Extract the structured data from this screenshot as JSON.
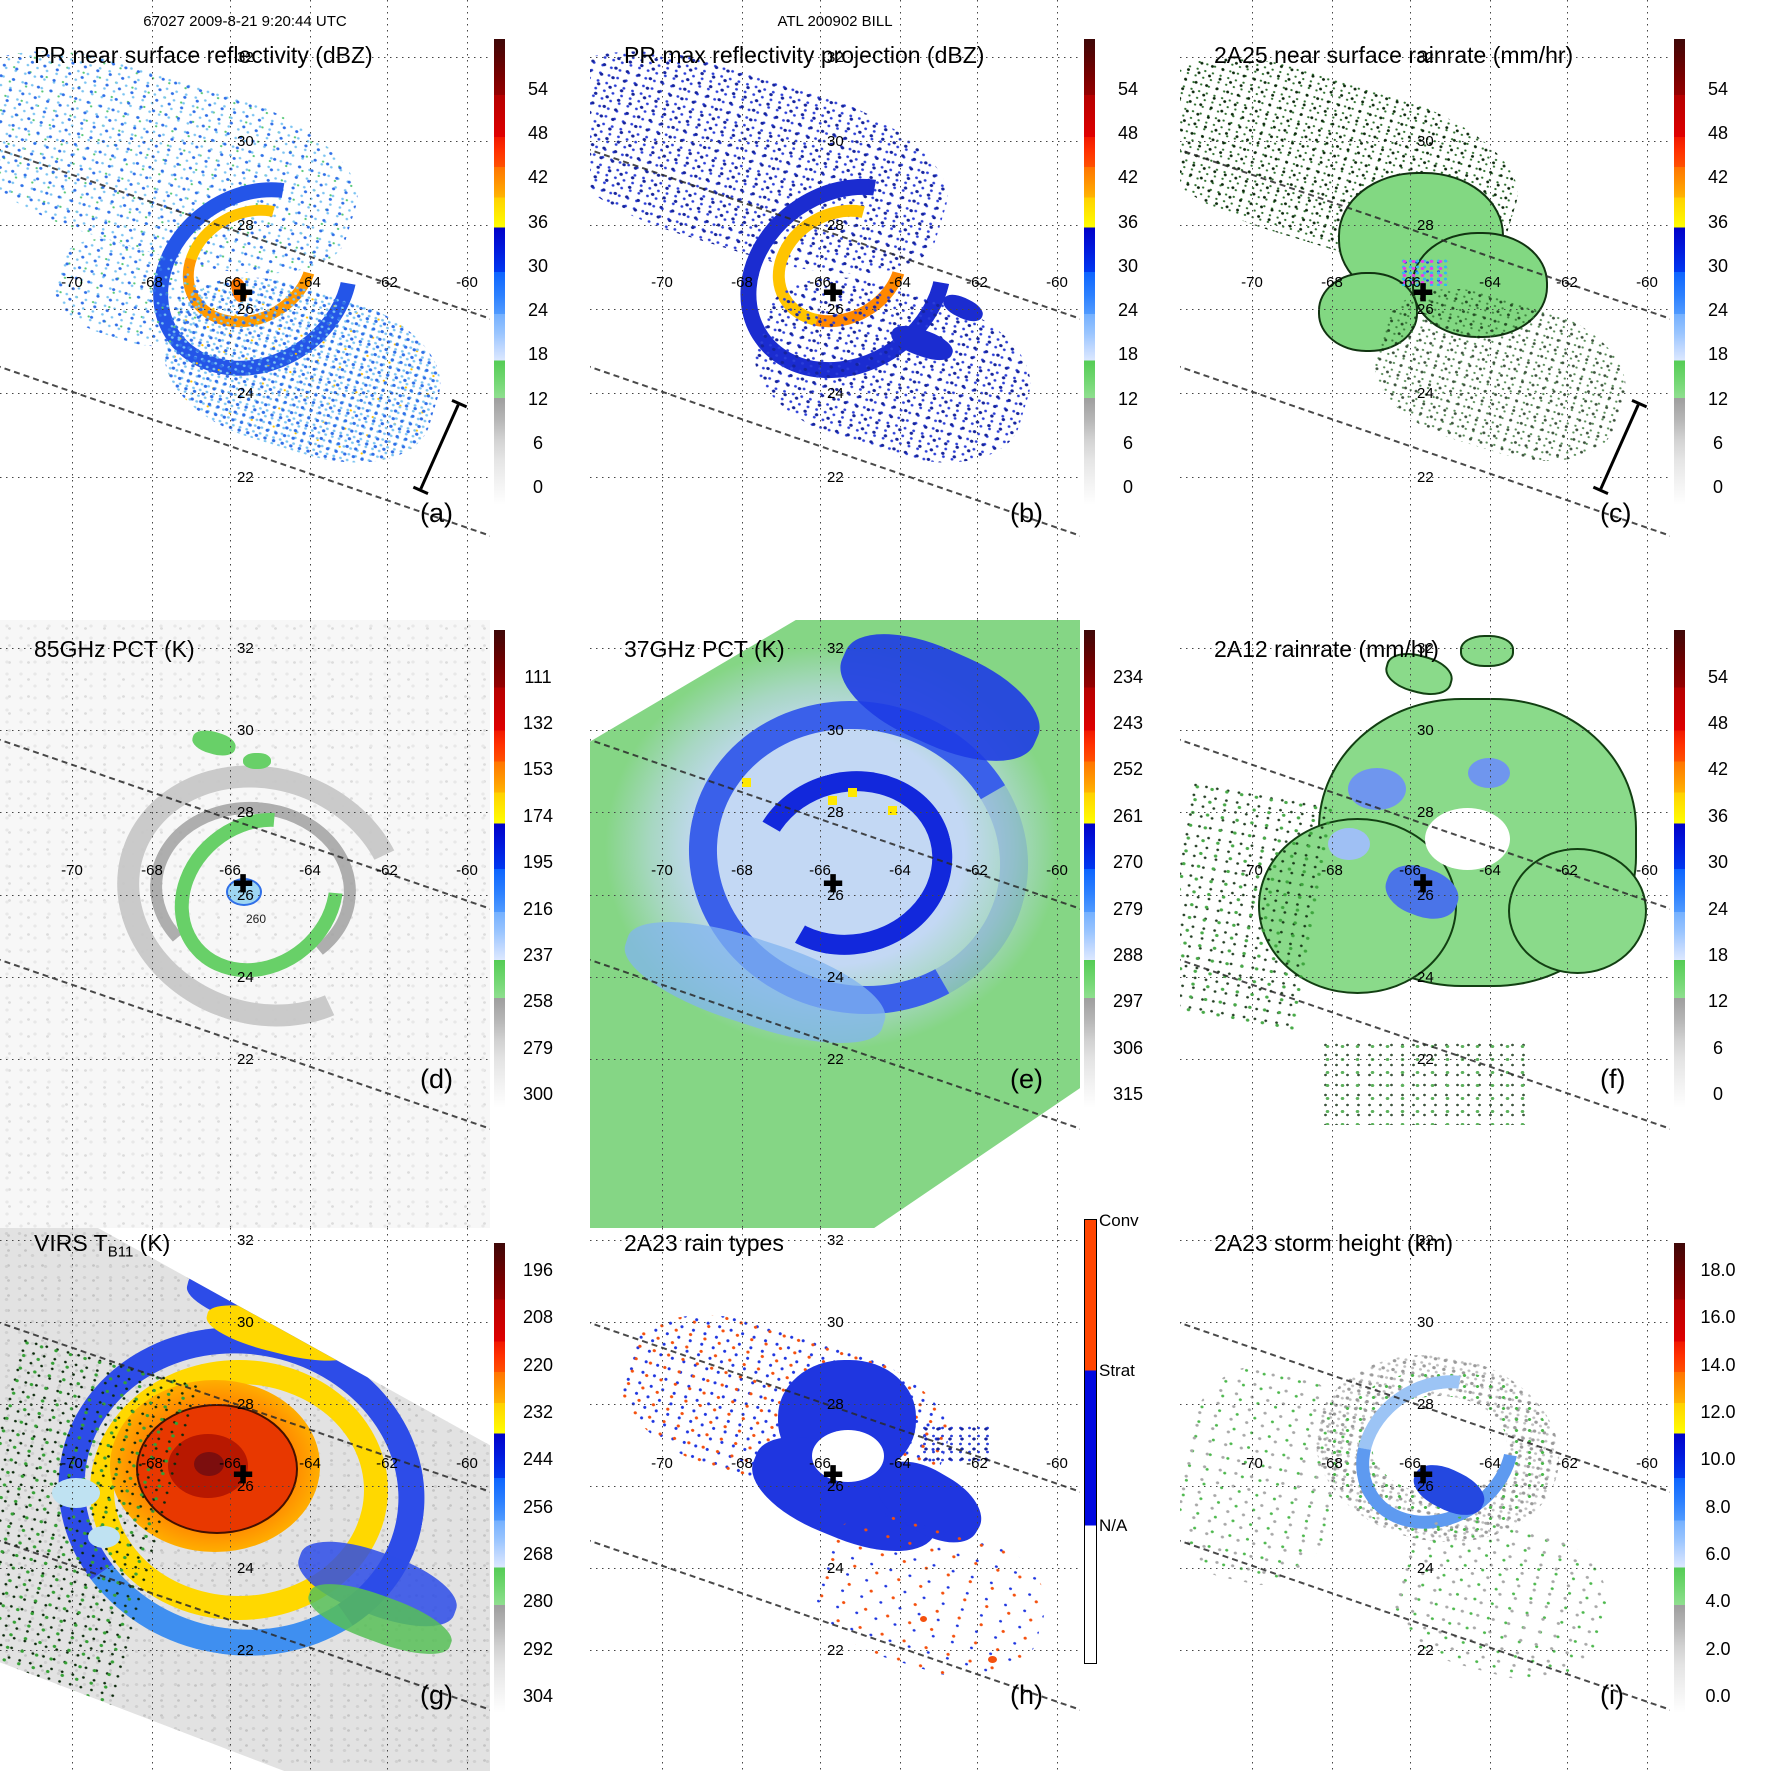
{
  "header": {
    "scan_info": "67027 2009-8-21 9:20:44 UTC",
    "storm_id": "ATL 200902 BILL"
  },
  "grid": {
    "lat_labels": [
      "32",
      "30",
      "28",
      "26",
      "24",
      "22"
    ],
    "lon_labels": [
      "-70",
      "-68",
      "-66",
      "-64",
      "-62",
      "-60"
    ]
  },
  "marker": {
    "glyph": "✚"
  },
  "panels": [
    {
      "id": "a",
      "letter": "(a)",
      "title": "PR near surface reflectivity (dBZ)",
      "ticks": [
        "0",
        "6",
        "12",
        "18",
        "24",
        "30",
        "36",
        "42",
        "48",
        "54"
      ]
    },
    {
      "id": "b",
      "letter": "(b)",
      "title": "PR max reflectivity projection (dBZ)",
      "ticks": [
        "0",
        "6",
        "12",
        "18",
        "24",
        "30",
        "36",
        "42",
        "48",
        "54"
      ]
    },
    {
      "id": "c",
      "letter": "(c)",
      "title": "2A25 near surface rainrate (mm/hr)",
      "ticks": [
        "0",
        "6",
        "12",
        "18",
        "24",
        "30",
        "36",
        "42",
        "48",
        "54"
      ]
    },
    {
      "id": "d",
      "letter": "(d)",
      "title": "85GHz PCT (K)",
      "contour_label": "260",
      "ticks": [
        "300",
        "279",
        "258",
        "237",
        "216",
        "195",
        "174",
        "153",
        "132",
        "111"
      ]
    },
    {
      "id": "e",
      "letter": "(e)",
      "title": "37GHz PCT (K)",
      "ticks": [
        "315",
        "306",
        "297",
        "288",
        "279",
        "270",
        "261",
        "252",
        "243",
        "234"
      ]
    },
    {
      "id": "f",
      "letter": "(f)",
      "title": "2A12 rainrate (mm/hr)",
      "ticks": [
        "0",
        "6",
        "12",
        "18",
        "24",
        "30",
        "36",
        "42",
        "48",
        "54"
      ]
    },
    {
      "id": "g",
      "letter": "(g)",
      "title_prefix": "VIRS T",
      "title_sub": "B11",
      "title_suffix": " (K)",
      "ticks": [
        "304",
        "292",
        "280",
        "268",
        "256",
        "244",
        "232",
        "220",
        "208",
        "196"
      ]
    },
    {
      "id": "h",
      "letter": "(h)",
      "title": "2A23 rain types",
      "type_labels": [
        "Conv",
        "Strat",
        "N/A"
      ]
    },
    {
      "id": "i",
      "letter": "(i)",
      "title": "2A23 storm height (km)",
      "ticks": [
        "0.0",
        "2.0",
        "4.0",
        "6.0",
        "8.0",
        "10.0",
        "12.0",
        "14.0",
        "16.0",
        "18.0"
      ]
    }
  ],
  "colors": {
    "raintype_conv": "#ff4500",
    "raintype_strat": "#0008e0",
    "raintype_na": "#ffffff",
    "gridline": "#444444",
    "palette_bottom_to_top": [
      "#ffffff",
      "#e4e4e4",
      "#b8b8b8",
      "#9e9e9e",
      "#8fdf8f",
      "#54cc54",
      "#dce8ff",
      "#98c4ff",
      "#509aff",
      "#0c64ff",
      "#0038f0",
      "#0000c8",
      "#ffff00",
      "#ffd000",
      "#ffb400",
      "#ff7400",
      "#ff3000",
      "#e00000",
      "#b40000",
      "#940000",
      "#5a0404",
      "#3e0808"
    ]
  },
  "chart_data": [
    {
      "panel": "a",
      "type": "heatmap",
      "title": "PR near surface reflectivity (dBZ)",
      "unit": "dBZ",
      "colorbar_ticks": [
        0,
        6,
        12,
        18,
        24,
        30,
        36,
        42,
        48,
        54
      ],
      "lon_gridlines": [
        -70,
        -68,
        -66,
        -64,
        -62,
        -60
      ],
      "lat_gridlines": [
        32,
        30,
        28,
        26,
        24,
        22
      ],
      "storm_center": {
        "lon": -65.3,
        "lat": 26.3
      }
    },
    {
      "panel": "b",
      "type": "heatmap",
      "title": "PR max reflectivity projection (dBZ)",
      "unit": "dBZ",
      "colorbar_ticks": [
        0,
        6,
        12,
        18,
        24,
        30,
        36,
        42,
        48,
        54
      ],
      "lon_gridlines": [
        -70,
        -68,
        -66,
        -64,
        -62,
        -60
      ],
      "lat_gridlines": [
        32,
        30,
        28,
        26,
        24,
        22
      ],
      "storm_center": {
        "lon": -65.3,
        "lat": 26.3
      }
    },
    {
      "panel": "c",
      "type": "heatmap",
      "title": "2A25 near surface rainrate (mm/hr)",
      "unit": "mm/hr",
      "colorbar_ticks": [
        0,
        6,
        12,
        18,
        24,
        30,
        36,
        42,
        48,
        54
      ],
      "lon_gridlines": [
        -70,
        -68,
        -66,
        -64,
        -62,
        -60
      ],
      "lat_gridlines": [
        32,
        30,
        28,
        26,
        24,
        22
      ],
      "storm_center": {
        "lon": -65.3,
        "lat": 26.3
      }
    },
    {
      "panel": "d",
      "type": "heatmap",
      "title": "85GHz PCT (K)",
      "unit": "K",
      "colorbar_ticks": [
        300,
        279,
        258,
        237,
        216,
        195,
        174,
        153,
        132,
        111
      ],
      "contour_label": 260,
      "lon_gridlines": [
        -70,
        -68,
        -66,
        -64,
        -62,
        -60
      ],
      "lat_gridlines": [
        32,
        30,
        28,
        26,
        24,
        22
      ],
      "storm_center": {
        "lon": -65.3,
        "lat": 26.3
      }
    },
    {
      "panel": "e",
      "type": "heatmap",
      "title": "37GHz PCT (K)",
      "unit": "K",
      "colorbar_ticks": [
        315,
        306,
        297,
        288,
        279,
        270,
        261,
        252,
        243,
        234
      ],
      "lon_gridlines": [
        -70,
        -68,
        -66,
        -64,
        -62,
        -60
      ],
      "lat_gridlines": [
        32,
        30,
        28,
        26,
        24,
        22
      ],
      "storm_center": {
        "lon": -65.3,
        "lat": 26.3
      }
    },
    {
      "panel": "f",
      "type": "heatmap",
      "title": "2A12 rainrate (mm/hr)",
      "unit": "mm/hr",
      "colorbar_ticks": [
        0,
        6,
        12,
        18,
        24,
        30,
        36,
        42,
        48,
        54
      ],
      "lon_gridlines": [
        -70,
        -68,
        -66,
        -64,
        -62,
        -60
      ],
      "lat_gridlines": [
        32,
        30,
        28,
        26,
        24,
        22
      ],
      "storm_center": {
        "lon": -65.3,
        "lat": 26.3
      }
    },
    {
      "panel": "g",
      "type": "heatmap",
      "title": "VIRS TB11 (K)",
      "unit": "K",
      "colorbar_ticks": [
        304,
        292,
        280,
        268,
        256,
        244,
        232,
        220,
        208,
        196
      ],
      "lon_gridlines": [
        -70,
        -68,
        -66,
        -64,
        -62,
        -60
      ],
      "lat_gridlines": [
        32,
        30,
        28,
        26,
        24,
        22
      ],
      "storm_center": {
        "lon": -65.3,
        "lat": 26.3
      }
    },
    {
      "panel": "h",
      "type": "heatmap",
      "title": "2A23 rain types",
      "categories": [
        "Conv",
        "Strat",
        "N/A"
      ],
      "category_colors": [
        "#ff4500",
        "#0008e0",
        "#ffffff"
      ],
      "lon_gridlines": [
        -70,
        -68,
        -66,
        -64,
        -62,
        -60
      ],
      "lat_gridlines": [
        32,
        30,
        28,
        26,
        24,
        22
      ],
      "storm_center": {
        "lon": -65.3,
        "lat": 26.3
      }
    },
    {
      "panel": "i",
      "type": "heatmap",
      "title": "2A23 storm height (km)",
      "unit": "km",
      "colorbar_ticks": [
        0.0,
        2.0,
        4.0,
        6.0,
        8.0,
        10.0,
        12.0,
        14.0,
        16.0,
        18.0
      ],
      "lon_gridlines": [
        -70,
        -68,
        -66,
        -64,
        -62,
        -60
      ],
      "lat_gridlines": [
        32,
        30,
        28,
        26,
        24,
        22
      ],
      "storm_center": {
        "lon": -65.3,
        "lat": 26.3
      }
    }
  ]
}
